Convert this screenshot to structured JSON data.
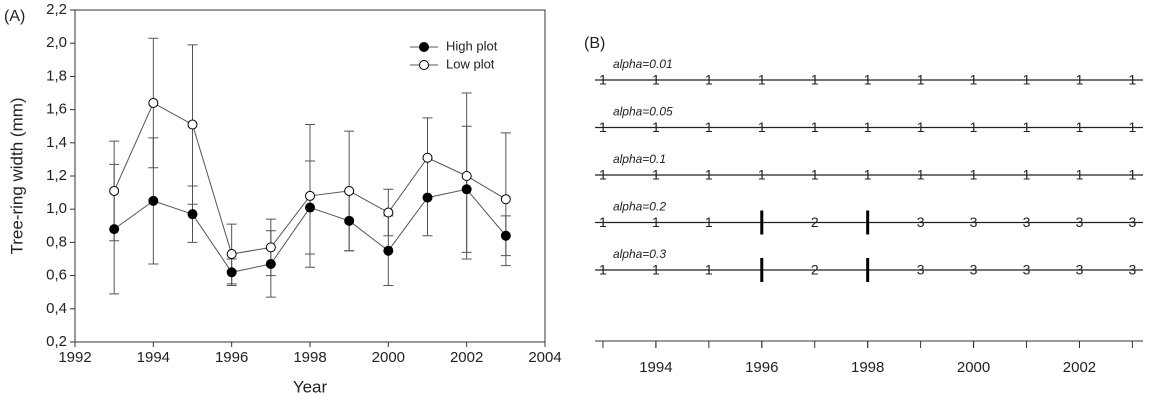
{
  "chart_data": [
    {
      "type": "line",
      "panel": "(A)",
      "x_label": "Year",
      "y_label": "Tree-ring width (mm)",
      "x": [
        1993,
        1994,
        1995,
        1996,
        1997,
        1998,
        1999,
        2000,
        2001,
        2002,
        2003
      ],
      "series": [
        {
          "name": "High plot",
          "color": "#555555",
          "marker_fill": "#000000",
          "values": [
            0.88,
            1.05,
            0.97,
            0.62,
            0.67,
            1.01,
            0.93,
            0.75,
            1.07,
            1.12,
            0.84
          ],
          "errors": [
            0.39,
            0.38,
            0.17,
            0.08,
            0.2,
            0.28,
            0.18,
            0.21,
            0.23,
            0.38,
            0.12
          ]
        },
        {
          "name": "Low plot",
          "color": "#555555",
          "marker_fill": "#ffffff",
          "values": [
            1.11,
            1.64,
            1.51,
            0.73,
            0.77,
            1.08,
            1.11,
            0.98,
            1.31,
            1.2,
            1.06
          ],
          "errors": [
            0.3,
            0.39,
            0.48,
            0.18,
            0.17,
            0.43,
            0.36,
            0.14,
            0.24,
            0.5,
            0.4
          ]
        }
      ],
      "xlim": [
        1992,
        2004
      ],
      "xticks": [
        1992,
        1994,
        1996,
        1998,
        2000,
        2002,
        2004
      ],
      "ylim": [
        0.2,
        2.2
      ],
      "yticks": [
        {
          "value": 0.2,
          "label": "0,2"
        },
        {
          "value": 0.4,
          "label": "0,4"
        },
        {
          "value": 0.6,
          "label": "0,6"
        },
        {
          "value": 0.8,
          "label": "0,8"
        },
        {
          "value": 1.0,
          "label": "1,0"
        },
        {
          "value": 1.2,
          "label": "1,2"
        },
        {
          "value": 1.4,
          "label": "1,4"
        },
        {
          "value": 1.6,
          "label": "1,6"
        },
        {
          "value": 1.8,
          "label": "1,8"
        },
        {
          "value": 2.0,
          "label": "2,0"
        },
        {
          "value": 2.2,
          "label": "2,2"
        }
      ],
      "legend": "top-right"
    },
    {
      "type": "timeline",
      "panel": "(B)",
      "x": [
        1993,
        1994,
        1995,
        1996,
        1997,
        1998,
        1999,
        2000,
        2001,
        2002,
        2003
      ],
      "xlim": [
        1992.85,
        2003.2
      ],
      "xticks": [
        1994,
        1996,
        1998,
        2000,
        2002
      ],
      "rows": [
        {
          "name": "alpha=0.01",
          "regimes": [
            1,
            1,
            1,
            1,
            1,
            1,
            1,
            1,
            1,
            1,
            1
          ],
          "shifts": []
        },
        {
          "name": "alpha=0.05",
          "regimes": [
            1,
            1,
            1,
            1,
            1,
            1,
            1,
            1,
            1,
            1,
            1
          ],
          "shifts": []
        },
        {
          "name": "alpha=0.1",
          "regimes": [
            1,
            1,
            1,
            1,
            1,
            1,
            1,
            1,
            1,
            1,
            1
          ],
          "shifts": []
        },
        {
          "name": "alpha=0.2",
          "regimes": [
            1,
            1,
            1,
            null,
            2,
            null,
            3,
            3,
            3,
            3,
            3
          ],
          "shifts": [
            1996,
            1998
          ]
        },
        {
          "name": "alpha=0.3",
          "regimes": [
            1,
            1,
            1,
            null,
            2,
            null,
            3,
            3,
            3,
            3,
            3
          ],
          "shifts": [
            1996,
            1998
          ]
        }
      ]
    }
  ]
}
